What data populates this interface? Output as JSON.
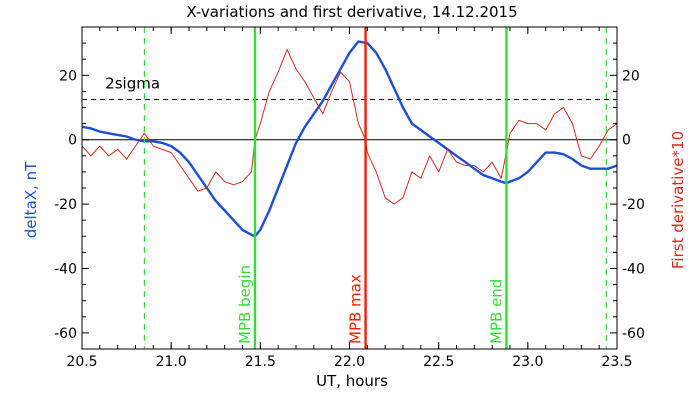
{
  "chart_data": {
    "type": "line",
    "title": "X-variations and first derivative, 14.12.2015",
    "xlabel": "UT, hours",
    "ylabel_left": "deltaX, nT",
    "ylabel_right": "First derivative*10",
    "xlim": [
      20.5,
      23.5
    ],
    "ylim": [
      -65,
      35
    ],
    "x_ticks": [
      20.5,
      21.0,
      21.5,
      22.0,
      22.5,
      23.0,
      23.5
    ],
    "x_tick_labels": [
      "20.5",
      "21.0",
      "21.5",
      "22.0",
      "22.5",
      "23.0",
      "23.5"
    ],
    "y_ticks": [
      20,
      0,
      -20,
      -40,
      -60
    ],
    "y_tick_labels": [
      "20",
      "0",
      "-20",
      "-40",
      "-60"
    ],
    "reference_lines": [
      {
        "name": "zero",
        "y": 0,
        "style": "solid",
        "color": "#000000"
      },
      {
        "name": "2sigma",
        "y": 12.5,
        "style": "dashed",
        "color": "#000000",
        "label": "2sigma"
      }
    ],
    "vertical_lines": [
      {
        "x": 20.85,
        "style": "dashed",
        "color": "#33dd33",
        "label": ""
      },
      {
        "x": 21.47,
        "style": "solid",
        "color": "#33dd33",
        "label": "MPB begin"
      },
      {
        "x": 22.09,
        "style": "solid",
        "color": "#ee2200",
        "label": "MPB max"
      },
      {
        "x": 22.88,
        "style": "solid",
        "color": "#33dd33",
        "label": "MPB end"
      },
      {
        "x": 23.44,
        "style": "dashed",
        "color": "#33dd33",
        "label": ""
      }
    ],
    "series": [
      {
        "name": "deltaX, nT",
        "color": "#1a4fd6",
        "x": [
          20.5,
          20.55,
          20.6,
          20.65,
          20.7,
          20.75,
          20.8,
          20.85,
          20.9,
          20.95,
          21.0,
          21.05,
          21.1,
          21.15,
          21.2,
          21.25,
          21.3,
          21.35,
          21.4,
          21.45,
          21.47,
          21.5,
          21.55,
          21.6,
          21.65,
          21.7,
          21.75,
          21.8,
          21.85,
          21.9,
          21.95,
          22.0,
          22.05,
          22.1,
          22.15,
          22.2,
          22.25,
          22.3,
          22.35,
          22.4,
          22.45,
          22.5,
          22.55,
          22.6,
          22.65,
          22.7,
          22.75,
          22.8,
          22.85,
          22.88,
          22.9,
          22.95,
          23.0,
          23.05,
          23.1,
          23.15,
          23.2,
          23.25,
          23.3,
          23.35,
          23.4,
          23.45,
          23.5
        ],
        "y": [
          4,
          3.5,
          2.5,
          2,
          1.5,
          1,
          0,
          -0.5,
          -0.5,
          -1,
          -2,
          -4,
          -7,
          -11,
          -15,
          -19,
          -22,
          -25,
          -28,
          -29.5,
          -30,
          -28,
          -22,
          -15,
          -8,
          -1,
          4,
          8,
          12,
          17,
          22,
          27,
          30.5,
          30,
          27,
          22,
          16,
          10,
          5,
          3,
          1,
          -1,
          -3,
          -5,
          -7,
          -9,
          -11,
          -12,
          -13,
          -13.5,
          -13,
          -12,
          -10,
          -7,
          -4,
          -4,
          -4.5,
          -6,
          -8,
          -9,
          -9,
          -9,
          -8
        ]
      },
      {
        "name": "First derivative*10",
        "color": "#d42b1e",
        "x": [
          20.5,
          20.55,
          20.6,
          20.65,
          20.7,
          20.75,
          20.8,
          20.85,
          20.9,
          20.95,
          21.0,
          21.05,
          21.1,
          21.15,
          21.2,
          21.25,
          21.3,
          21.35,
          21.4,
          21.45,
          21.47,
          21.5,
          21.55,
          21.6,
          21.65,
          21.7,
          21.75,
          21.8,
          21.85,
          21.9,
          21.95,
          22.0,
          22.05,
          22.09,
          22.1,
          22.15,
          22.2,
          22.25,
          22.3,
          22.35,
          22.4,
          22.45,
          22.5,
          22.55,
          22.6,
          22.65,
          22.7,
          22.75,
          22.8,
          22.85,
          22.88,
          22.9,
          22.95,
          23.0,
          23.05,
          23.1,
          23.15,
          23.2,
          23.25,
          23.3,
          23.35,
          23.4,
          23.45,
          23.5
        ],
        "y": [
          -2,
          -5,
          -2,
          -5,
          -3,
          -6,
          -2,
          2,
          -2,
          -3,
          -4,
          -8,
          -12,
          -16,
          -15,
          -10,
          -13,
          -14,
          -13,
          -10,
          0,
          5,
          15,
          21,
          28,
          22,
          18,
          13,
          8,
          15,
          21,
          18,
          5,
          0,
          -4,
          -10,
          -18,
          -20,
          -18,
          -10,
          -12,
          -5,
          -10,
          -3,
          -7,
          -8,
          -8,
          -10,
          -7,
          -12,
          -4,
          2,
          6,
          5,
          5,
          3,
          8,
          10,
          5,
          -5,
          -6,
          -2,
          3,
          5
        ]
      }
    ]
  }
}
